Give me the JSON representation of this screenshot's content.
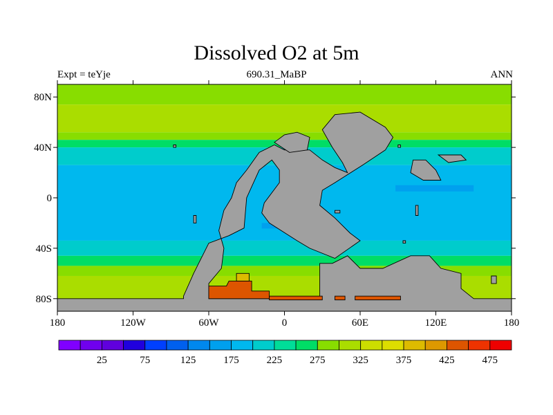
{
  "title": "Dissolved O2 at 5m",
  "subtitle_left": "Expt = teYje",
  "subtitle_center": "690.31_MaBP",
  "subtitle_right": "ANN",
  "map": {
    "lon_range": [
      -180,
      180
    ],
    "lat_range": [
      -90,
      90
    ],
    "lon_ticks": [
      {
        "value": -180,
        "label": "180"
      },
      {
        "value": -120,
        "label": "120W"
      },
      {
        "value": -60,
        "label": "60W"
      },
      {
        "value": 0,
        "label": "0"
      },
      {
        "value": 60,
        "label": "60E"
      },
      {
        "value": 120,
        "label": "120E"
      },
      {
        "value": 180,
        "label": "180"
      }
    ],
    "lat_ticks": [
      {
        "value": 80,
        "label": "80N"
      },
      {
        "value": 40,
        "label": "40N"
      },
      {
        "value": 0,
        "label": "0"
      },
      {
        "value": -40,
        "label": "40S"
      },
      {
        "value": -80,
        "label": "80S"
      }
    ],
    "land_color": "#a0a0a0",
    "zonal_bands": [
      {
        "lat": [
          74,
          90
        ],
        "value": 300
      },
      {
        "lat": [
          52,
          74
        ],
        "value": 325
      },
      {
        "lat": [
          46,
          52
        ],
        "value": 300
      },
      {
        "lat": [
          40,
          46
        ],
        "value": 275
      },
      {
        "lat": [
          26,
          40
        ],
        "value": 225
      },
      {
        "lat": [
          -34,
          26
        ],
        "value": 200
      },
      {
        "lat": [
          -46,
          -34
        ],
        "value": 225
      },
      {
        "lat": [
          -54,
          -46
        ],
        "value": 275
      },
      {
        "lat": [
          -62,
          -54
        ],
        "value": 300
      },
      {
        "lat": [
          -80,
          -62
        ],
        "value": 325
      }
    ],
    "warm_lake_value": 450,
    "warm_lake_top_value": 400,
    "low_patch_value": 175
  },
  "colorbar": {
    "colors": [
      "#8000ff",
      "#7000ee",
      "#6000dd",
      "#2000dd",
      "#0040ff",
      "#0060ee",
      "#0088ee",
      "#00a0ee",
      "#00b8ee",
      "#00cccc",
      "#00dd99",
      "#00dd66",
      "#88dd00",
      "#aadd00",
      "#ccdd00",
      "#dddd00",
      "#ddbb00",
      "#dd9900",
      "#dd5500",
      "#ee3300",
      "#ee0000"
    ],
    "labels": [
      {
        "index": 1,
        "text": "25"
      },
      {
        "index": 3,
        "text": "75"
      },
      {
        "index": 5,
        "text": "125"
      },
      {
        "index": 7,
        "text": "175"
      },
      {
        "index": 9,
        "text": "225"
      },
      {
        "index": 11,
        "text": "275"
      },
      {
        "index": 13,
        "text": "325"
      },
      {
        "index": 15,
        "text": "375"
      },
      {
        "index": 17,
        "text": "425"
      },
      {
        "index": 19,
        "text": "475"
      }
    ],
    "min": 0,
    "step": 25
  }
}
